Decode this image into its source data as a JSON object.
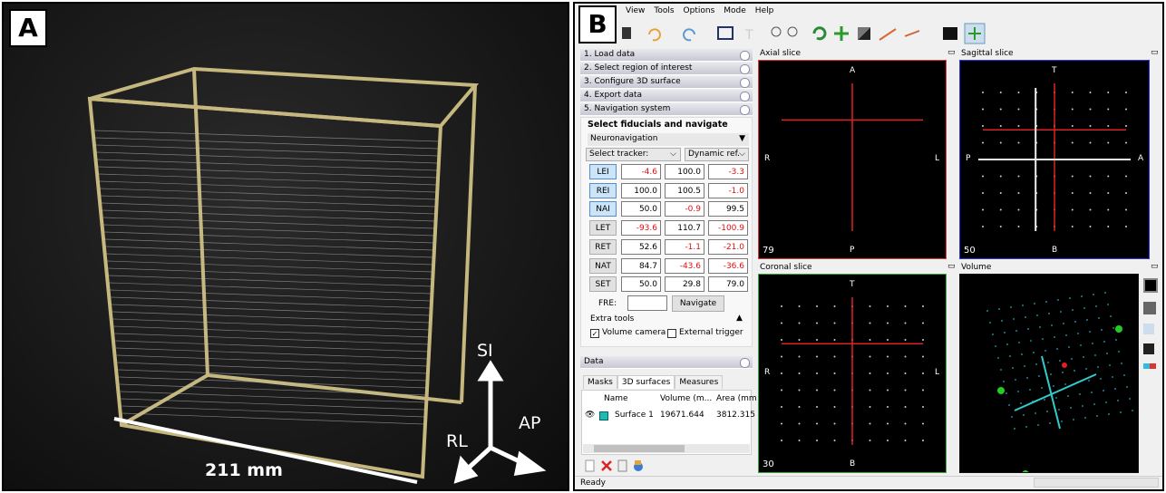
{
  "panel_a": {
    "label": "A",
    "axes": {
      "si": "SI",
      "ap": "AP",
      "rl": "RL"
    },
    "scale": "211 mm"
  },
  "panel_b": {
    "label": "B",
    "menu": [
      "View",
      "Tools",
      "Options",
      "Mode",
      "Help"
    ],
    "steps": [
      "1. Load data",
      "2. Select region of interest",
      "3. Configure 3D surface",
      "4. Export data",
      "5. Navigation system"
    ],
    "navigation": {
      "heading": "Select fiducials and navigate",
      "mode": "Neuronavigation",
      "tracker": "Select tracker:",
      "reference": "Dynamic ref.",
      "fiducials": [
        {
          "name": "LEI",
          "values": [
            "-4.6",
            "100.0",
            "-3.3"
          ]
        },
        {
          "name": "REI",
          "values": [
            "100.0",
            "100.5",
            "-1.0"
          ]
        },
        {
          "name": "NAI",
          "values": [
            "50.0",
            "-0.9",
            "99.5"
          ]
        },
        {
          "name": "LET",
          "values": [
            "-93.6",
            "110.7",
            "-100.9"
          ]
        },
        {
          "name": "RET",
          "values": [
            "52.6",
            "-1.1",
            "-21.0"
          ]
        },
        {
          "name": "NAT",
          "values": [
            "84.7",
            "-43.6",
            "-36.6"
          ]
        },
        {
          "name": "SET",
          "values": [
            "50.0",
            "29.8",
            "79.0"
          ]
        }
      ],
      "fre_label": "FRE:",
      "navigate_button": "Navigate",
      "extra_tools": "Extra tools",
      "checkboxes": [
        "Volume camera",
        "External trigger"
      ]
    },
    "data_panel": {
      "title": "Data",
      "tabs": [
        "Masks",
        "3D surfaces",
        "Measures"
      ],
      "columns": [
        "Name",
        "Volume (m...",
        "Area (mm"
      ],
      "rows": [
        [
          "Surface 1",
          "19671.644",
          "3812.315"
        ]
      ]
    },
    "viewers": [
      {
        "title": "Axial slice",
        "top": "A",
        "bottom": "P",
        "left": "R",
        "right": "L",
        "slice": "79"
      },
      {
        "title": "Sagittal slice",
        "top": "T",
        "bottom": "B",
        "left": "P",
        "right": "A",
        "slice": "50"
      },
      {
        "title": "Coronal slice",
        "top": "T",
        "bottom": "B",
        "left": "R",
        "right": "L",
        "slice": "30"
      },
      {
        "title": "Volume"
      }
    ],
    "status": "Ready"
  }
}
